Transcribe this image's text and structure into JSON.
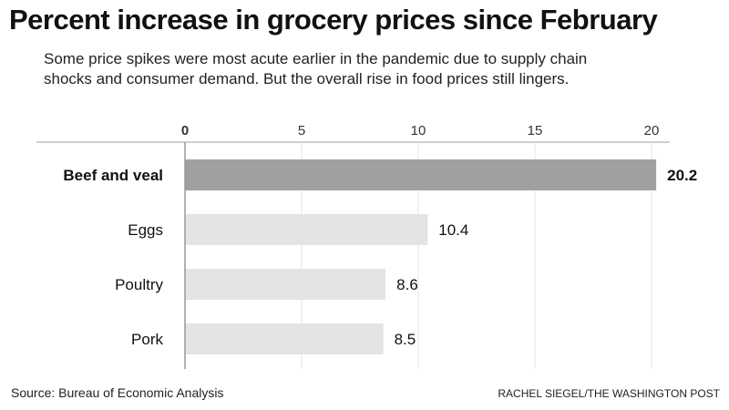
{
  "title": "Percent increase in grocery prices since February",
  "subtitle": "Some price spikes were most acute earlier in the pandemic due to supply chain shocks and consumer demand. But the overall rise in food prices still lingers.",
  "source": "Source: Bureau of Economic Analysis",
  "credit": "RACHEL SIEGEL/THE WASHINGTON POST",
  "chart_data": {
    "type": "bar",
    "orientation": "horizontal",
    "categories": [
      "Beef and veal",
      "Eggs",
      "Poultry",
      "Pork"
    ],
    "values": [
      20.2,
      10.4,
      8.6,
      8.5
    ],
    "value_labels": [
      "20.2",
      "10.4",
      "8.6",
      "8.5"
    ],
    "highlight": "Beef and veal",
    "xticks": [
      0,
      5,
      10,
      15,
      20
    ],
    "xtick_labels": [
      "0",
      "5",
      "10",
      "15",
      "20"
    ],
    "xlim": [
      0,
      20.5
    ],
    "xaxis_position": "top",
    "grid": true,
    "colors": {
      "highlight": "#a0a0a0",
      "default": "#e4e4e4",
      "grid": "#e6e6e6"
    }
  }
}
